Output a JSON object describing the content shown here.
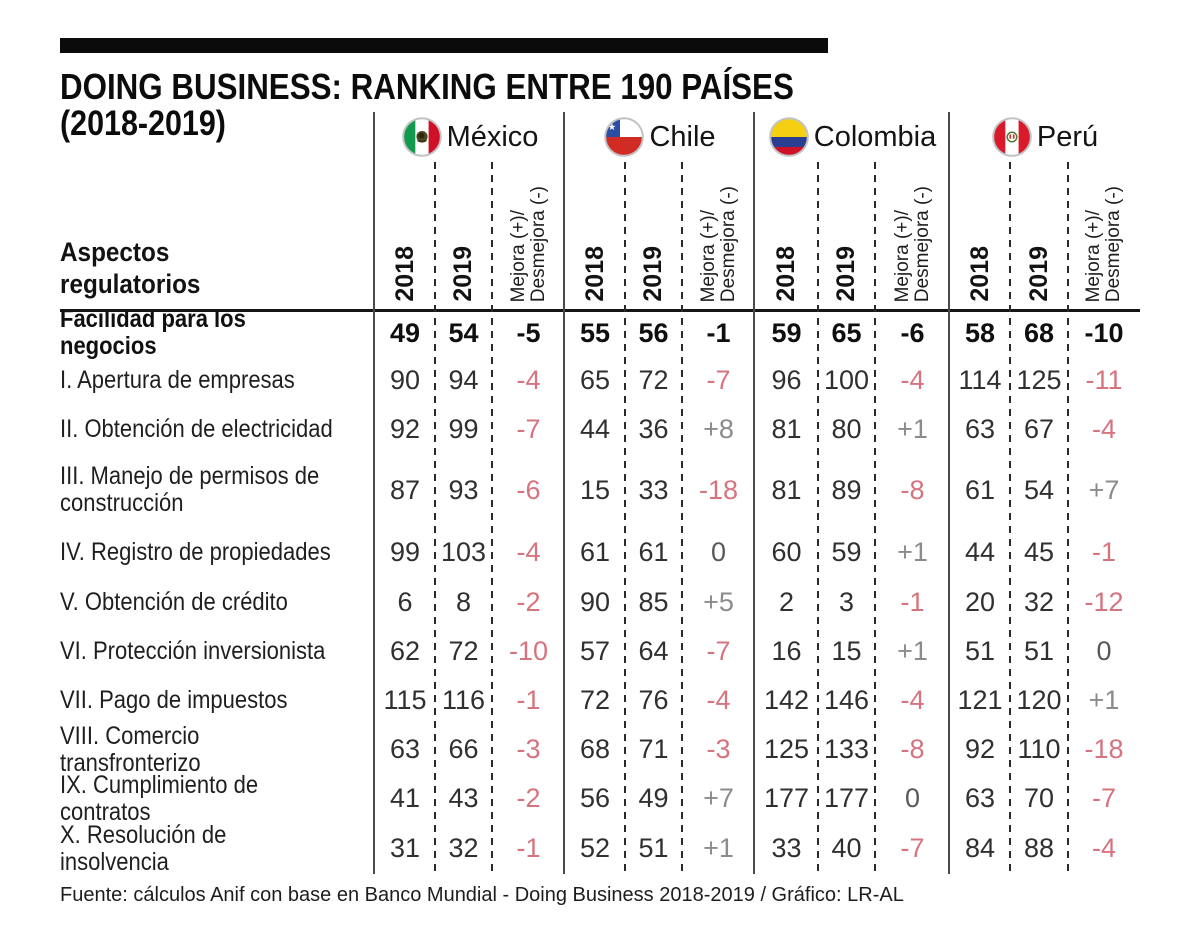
{
  "header": {
    "title_line1": "DOING BUSINESS: RANKING ENTRE 190 PAÍSES",
    "title_line2": "(2018-2019)",
    "row_header_line1": "Aspectos",
    "row_header_line2": "regulatorios",
    "countries": [
      {
        "key": "mexico",
        "name": "México",
        "flag": "mexico-flag-icon"
      },
      {
        "key": "chile",
        "name": "Chile",
        "flag": "chile-flag-icon"
      },
      {
        "key": "colombia",
        "name": "Colombia",
        "flag": "colombia-flag-icon"
      },
      {
        "key": "peru",
        "name": "Perú",
        "flag": "peru-flag-icon"
      }
    ],
    "subcolumns": {
      "year1": "2018",
      "year2": "2019",
      "change_line1": "Mejora (+)/",
      "change_line2": "Desmejora (-)"
    }
  },
  "chart_data": {
    "type": "table",
    "title": "DOING BUSINESS: RANKING ENTRE 190 PAÍSES (2018-2019)",
    "row_header": "Aspectos regulatorios",
    "column_groups": [
      "México",
      "Chile",
      "Colombia",
      "Perú"
    ],
    "subcolumns": [
      "2018",
      "2019",
      "Mejora (+)/Desmejora (-)"
    ],
    "rows": [
      {
        "label": "Facilidad para los negocios",
        "bold": true,
        "mexico": [
          "49",
          "54",
          "-5"
        ],
        "chile": [
          "55",
          "56",
          "-1"
        ],
        "colombia": [
          "59",
          "65",
          "-6"
        ],
        "peru": [
          "58",
          "68",
          "-10"
        ]
      },
      {
        "label": "I. Apertura de empresas",
        "bold": false,
        "mexico": [
          "90",
          "94",
          "-4"
        ],
        "chile": [
          "65",
          "72",
          "-7"
        ],
        "colombia": [
          "96",
          "100",
          "-4"
        ],
        "peru": [
          "114",
          "125",
          "-11"
        ]
      },
      {
        "label": "II. Obtención de electricidad",
        "bold": false,
        "mexico": [
          "92",
          "99",
          "-7"
        ],
        "chile": [
          "44",
          "36",
          "+8"
        ],
        "colombia": [
          "81",
          "80",
          "+1"
        ],
        "peru": [
          "63",
          "67",
          "-4"
        ]
      },
      {
        "label": "III. Manejo de permisos de construcción",
        "bold": false,
        "mexico": [
          "87",
          "93",
          "-6"
        ],
        "chile": [
          "15",
          "33",
          "-18"
        ],
        "colombia": [
          "81",
          "89",
          "-8"
        ],
        "peru": [
          "61",
          "54",
          "+7"
        ]
      },
      {
        "label": "IV. Registro de propiedades",
        "bold": false,
        "mexico": [
          "99",
          "103",
          "-4"
        ],
        "chile": [
          "61",
          "61",
          "0"
        ],
        "colombia": [
          "60",
          "59",
          "+1"
        ],
        "peru": [
          "44",
          "45",
          "-1"
        ]
      },
      {
        "label": "V. Obtención de crédito",
        "bold": false,
        "mexico": [
          "6",
          "8",
          "-2"
        ],
        "chile": [
          "90",
          "85",
          "+5"
        ],
        "colombia": [
          "2",
          "3",
          "-1"
        ],
        "peru": [
          "20",
          "32",
          "-12"
        ]
      },
      {
        "label": "VI. Protección inversionista",
        "bold": false,
        "mexico": [
          "62",
          "72",
          "-10"
        ],
        "chile": [
          "57",
          "64",
          "-7"
        ],
        "colombia": [
          "16",
          "15",
          "+1"
        ],
        "peru": [
          "51",
          "51",
          "0"
        ]
      },
      {
        "label": "VII. Pago de impuestos",
        "bold": false,
        "mexico": [
          "115",
          "116",
          "-1"
        ],
        "chile": [
          "72",
          "76",
          "-4"
        ],
        "colombia": [
          "142",
          "146",
          "-4"
        ],
        "peru": [
          "121",
          "120",
          "+1"
        ]
      },
      {
        "label": "VIII. Comercio transfronterizo",
        "bold": false,
        "mexico": [
          "63",
          "66",
          "-3"
        ],
        "chile": [
          "68",
          "71",
          "-3"
        ],
        "colombia": [
          "125",
          "133",
          "-8"
        ],
        "peru": [
          "92",
          "110",
          "-18"
        ]
      },
      {
        "label": "IX. Cumplimiento de contratos",
        "bold": false,
        "mexico": [
          "41",
          "43",
          "-2"
        ],
        "chile": [
          "56",
          "49",
          "+7"
        ],
        "colombia": [
          "177",
          "177",
          "0"
        ],
        "peru": [
          "63",
          "70",
          "-7"
        ]
      },
      {
        "label": "X. Resolución de insolvencia",
        "bold": false,
        "mexico": [
          "31",
          "32",
          "-1"
        ],
        "chile": [
          "52",
          "51",
          "+1"
        ],
        "colombia": [
          "33",
          "40",
          "-7"
        ],
        "peru": [
          "84",
          "88",
          "-4"
        ]
      }
    ]
  },
  "footer": {
    "source": "Fuente: cálculos Anif con base en Banco Mundial - Doing Business 2018-2019 / Gráfico: LR-AL"
  },
  "colors": {
    "negative": "#d5747f",
    "positive": "#8a8b8d",
    "zero": "#58595b",
    "accent_bar": "#0b0b0b"
  }
}
